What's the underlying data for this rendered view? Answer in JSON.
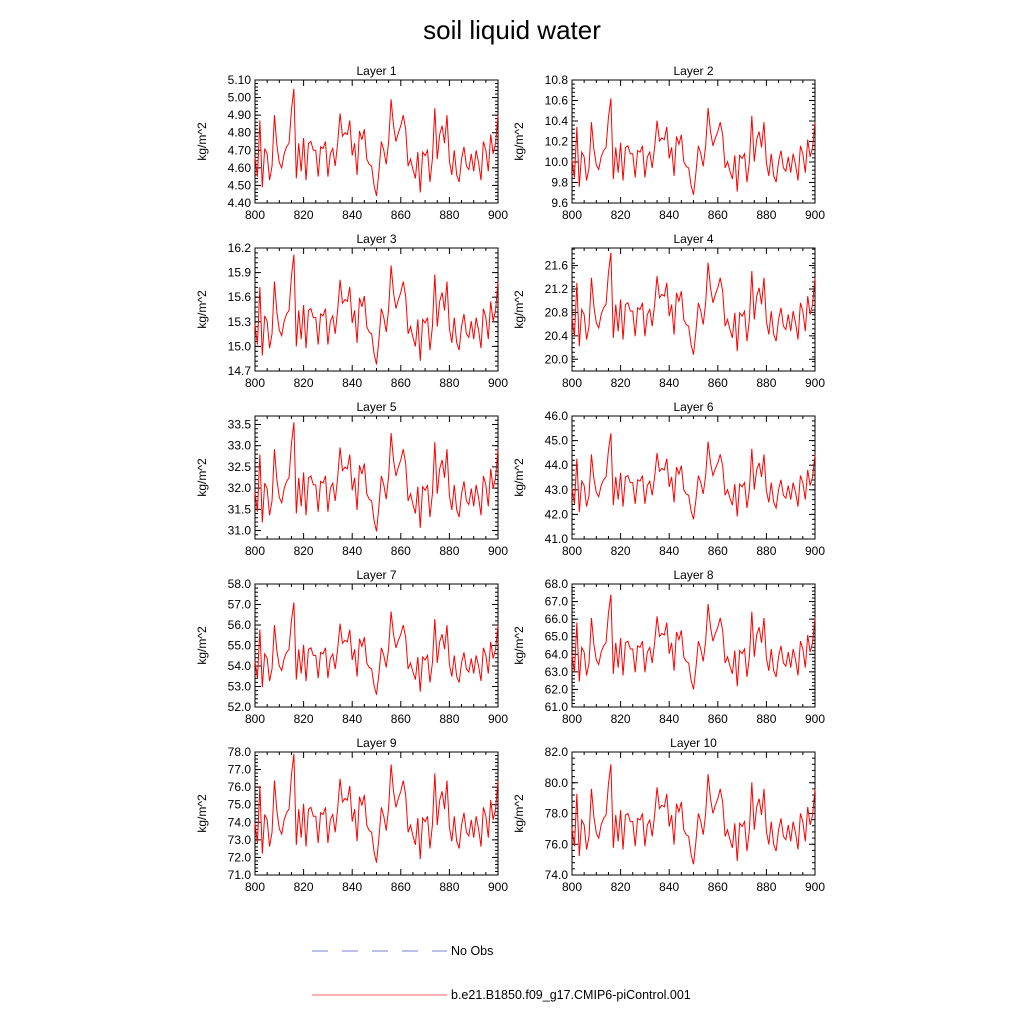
{
  "chart_data": {
    "type": "line",
    "title": "soil liquid water",
    "xlim": [
      800,
      900
    ],
    "xticks": [
      800,
      820,
      840,
      860,
      880,
      900
    ],
    "ylabel": "kg/m^2",
    "base_series": [
      4.66,
      4.55,
      4.87,
      4.49,
      4.71,
      4.68,
      4.53,
      4.61,
      4.9,
      4.73,
      4.63,
      4.6,
      4.68,
      4.72,
      4.74,
      4.93,
      5.05,
      4.54,
      4.74,
      4.58,
      4.77,
      4.53,
      4.74,
      4.75,
      4.7,
      4.7,
      4.55,
      4.72,
      4.71,
      4.75,
      4.55,
      4.68,
      4.71,
      4.61,
      4.74,
      4.91,
      4.78,
      4.8,
      4.79,
      4.87,
      4.67,
      4.74,
      4.56,
      4.81,
      4.76,
      4.82,
      4.65,
      4.62,
      4.61,
      4.5,
      4.44,
      4.58,
      4.75,
      4.7,
      4.62,
      4.75,
      4.99,
      4.84,
      4.75,
      4.8,
      4.84,
      4.9,
      4.82,
      4.61,
      4.65,
      4.59,
      4.54,
      4.69,
      4.46,
      4.69,
      4.67,
      4.7,
      4.52,
      4.65,
      4.94,
      4.65,
      4.79,
      4.84,
      4.74,
      4.9,
      4.64,
      4.56,
      4.7,
      4.56,
      4.52,
      4.65,
      4.72,
      4.61,
      4.59,
      4.68,
      4.58,
      4.7,
      4.63,
      4.53,
      4.75,
      4.7,
      4.58,
      4.79,
      4.68,
      4.74,
      4.9
    ],
    "base_range": [
      4.44,
      5.05
    ],
    "series_legend": [
      {
        "name": "No Obs",
        "color": "#7b7bd6",
        "style": "dashed"
      },
      {
        "name": "b.e21.B1850.f09_g17.CMIP6-piControl.001",
        "color": "#ff0000",
        "style": "solid"
      }
    ],
    "panels": [
      {
        "title": "Layer 1",
        "ylim": [
          4.4,
          5.1
        ],
        "yticks": [
          "4.40",
          "4.50",
          "4.60",
          "4.70",
          "4.80",
          "4.90",
          "5.00",
          "5.10"
        ],
        "data_range": [
          4.44,
          5.05
        ]
      },
      {
        "title": "Layer 2",
        "ylim": [
          9.6,
          10.8
        ],
        "yticks": [
          "9.6",
          "9.8",
          "10.0",
          "10.2",
          "10.4",
          "10.6",
          "10.8"
        ],
        "data_range": [
          9.68,
          10.62
        ]
      },
      {
        "title": "Layer 3",
        "ylim": [
          14.7,
          16.2
        ],
        "yticks": [
          "14.7",
          "15.0",
          "15.3",
          "15.6",
          "15.9",
          "16.2"
        ],
        "data_range": [
          14.78,
          16.12
        ]
      },
      {
        "title": "Layer 4",
        "ylim": [
          19.8,
          21.9
        ],
        "yticks": [
          "20.0",
          "20.4",
          "20.8",
          "21.2",
          "21.6"
        ],
        "data_range": [
          20.08,
          21.82
        ]
      },
      {
        "title": "Layer 5",
        "ylim": [
          30.8,
          33.7
        ],
        "yticks": [
          "31.0",
          "31.5",
          "32.0",
          "32.5",
          "33.0",
          "33.5"
        ],
        "data_range": [
          30.98,
          33.55
        ]
      },
      {
        "title": "Layer 6",
        "ylim": [
          41.0,
          46.0
        ],
        "yticks": [
          "41.0",
          "42.0",
          "43.0",
          "44.0",
          "45.0",
          "46.0"
        ],
        "data_range": [
          41.8,
          45.3
        ]
      },
      {
        "title": "Layer 7",
        "ylim": [
          52.0,
          58.0
        ],
        "yticks": [
          "52.0",
          "53.0",
          "54.0",
          "55.0",
          "56.0",
          "57.0",
          "58.0"
        ],
        "data_range": [
          52.6,
          57.1
        ]
      },
      {
        "title": "Layer 8",
        "ylim": [
          61.0,
          68.0
        ],
        "yticks": [
          "61.0",
          "62.0",
          "63.0",
          "64.0",
          "65.0",
          "66.0",
          "67.0",
          "68.0"
        ],
        "data_range": [
          62.0,
          67.4
        ]
      },
      {
        "title": "Layer 9",
        "ylim": [
          71.0,
          78.0
        ],
        "yticks": [
          "71.0",
          "72.0",
          "73.0",
          "74.0",
          "75.0",
          "76.0",
          "77.0",
          "78.0"
        ],
        "data_range": [
          71.7,
          77.9
        ]
      },
      {
        "title": "Layer 10",
        "ylim": [
          74.0,
          82.0
        ],
        "yticks": [
          "74.0",
          "76.0",
          "78.0",
          "80.0",
          "82.0"
        ],
        "data_range": [
          74.7,
          81.2
        ]
      }
    ]
  }
}
